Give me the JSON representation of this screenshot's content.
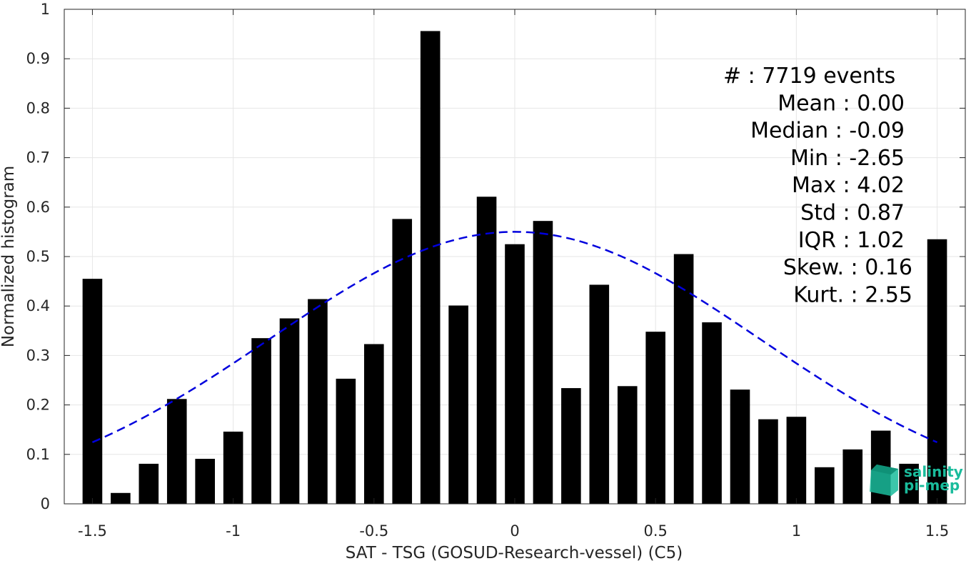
{
  "chart_data": {
    "type": "bar",
    "xlabel": "SAT - TSG (GOSUD-Research-vessel) (C5)",
    "ylabel": "Normalized histogram",
    "xlim": [
      -1.6,
      1.6
    ],
    "ylim": [
      0,
      1
    ],
    "x_ticks": [
      -1.5,
      -1,
      -0.5,
      0,
      0.5,
      1,
      1.5
    ],
    "x_tick_labels": [
      "-1.5",
      "-1",
      "-0.5",
      "0",
      "0.5",
      "1",
      "1.5"
    ],
    "y_ticks": [
      0,
      0.1,
      0.2,
      0.3,
      0.4,
      0.5,
      0.6,
      0.7,
      0.8,
      0.9,
      1
    ],
    "y_tick_labels": [
      "0",
      "0.1",
      "0.2",
      "0.3",
      "0.4",
      "0.5",
      "0.6",
      "0.7",
      "0.8",
      "0.9",
      "1"
    ],
    "grid": true,
    "bar_color": "#000000",
    "bar_width": 0.07,
    "x": [
      -1.5,
      -1.4,
      -1.3,
      -1.2,
      -1.1,
      -1.0,
      -0.9,
      -0.8,
      -0.7,
      -0.6,
      -0.5,
      -0.4,
      -0.3,
      -0.2,
      -0.1,
      0.0,
      0.1,
      0.2,
      0.3,
      0.4,
      0.5,
      0.6,
      0.7,
      0.8,
      0.9,
      1.0,
      1.1,
      1.2,
      1.3,
      1.4,
      1.5
    ],
    "values": [
      0.455,
      0.022,
      0.081,
      0.212,
      0.091,
      0.146,
      0.335,
      0.375,
      0.414,
      0.253,
      0.323,
      0.576,
      0.956,
      0.401,
      0.621,
      0.525,
      0.572,
      0.234,
      0.443,
      0.238,
      0.348,
      0.505,
      0.367,
      0.231,
      0.171,
      0.176,
      0.074,
      0.11,
      0.148,
      0.081,
      0.535
    ],
    "fit_curve": {
      "style": "dashed",
      "color": "#0000dd",
      "mean": 0.0,
      "std": 0.87,
      "peak": 0.55,
      "x_range": [
        -1.5,
        1.5
      ]
    },
    "stats": [
      {
        "label": "#  : 7719 events",
        "anchor": "start"
      },
      {
        "label": "Mean : 0.00",
        "anchor": "end"
      },
      {
        "label": "Median : -0.09",
        "anchor": "end"
      },
      {
        "label": "Min : -2.65",
        "anchor": "end"
      },
      {
        "label": "Max : 4.02",
        "anchor": "end"
      },
      {
        "label": "Std : 0.87",
        "anchor": "end"
      },
      {
        "label": "IQR : 1.02",
        "anchor": "end"
      },
      {
        "label": "Skew. : 0.16",
        "anchor": "end"
      },
      {
        "label": "Kurt. : 2.55",
        "anchor": "end"
      }
    ],
    "logo": {
      "line1": "salinity",
      "line2": "pi-mep",
      "color": "#1abc9c"
    }
  }
}
